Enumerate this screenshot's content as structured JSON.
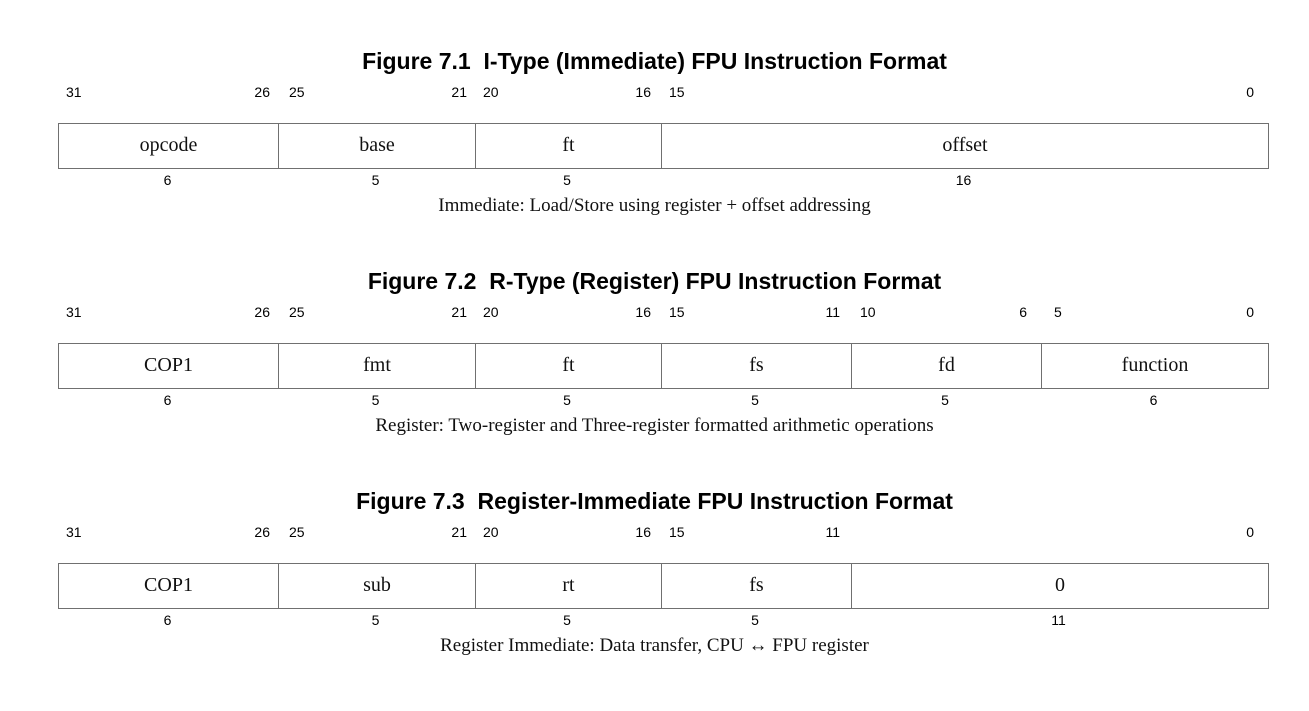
{
  "figures": [
    {
      "title": "Figure 7.1  I-Type (Immediate) FPU Instruction Format",
      "fields": [
        {
          "name": "opcode",
          "hi": "31",
          "lo": "26",
          "width": "6"
        },
        {
          "name": "base",
          "hi": "25",
          "lo": "21",
          "width": "5"
        },
        {
          "name": "ft",
          "hi": "20",
          "lo": "16",
          "width": "5"
        },
        {
          "name": "offset",
          "hi": "15",
          "lo": "0",
          "width": "16"
        }
      ],
      "caption": "Immediate: Load/Store using register + offset addressing"
    },
    {
      "title": "Figure 7.2  R-Type (Register) FPU Instruction Format",
      "fields": [
        {
          "name": "COP1",
          "hi": "31",
          "lo": "26",
          "width": "6"
        },
        {
          "name": "fmt",
          "hi": "25",
          "lo": "21",
          "width": "5"
        },
        {
          "name": "ft",
          "hi": "20",
          "lo": "16",
          "width": "5"
        },
        {
          "name": "fs",
          "hi": "15",
          "lo": "11",
          "width": "5"
        },
        {
          "name": "fd",
          "hi": "10",
          "lo": "6",
          "width": "5"
        },
        {
          "name": "function",
          "hi": "5",
          "lo": "0",
          "width": "6"
        }
      ],
      "caption": "Register: Two-register and Three-register formatted arithmetic operations"
    },
    {
      "title": "Figure 7.3  Register-Immediate FPU Instruction Format",
      "fields": [
        {
          "name": "COP1",
          "hi": "31",
          "lo": "26",
          "width": "6"
        },
        {
          "name": "sub",
          "hi": "25",
          "lo": "21",
          "width": "5"
        },
        {
          "name": "rt",
          "hi": "20",
          "lo": "16",
          "width": "5"
        },
        {
          "name": "fs",
          "hi": "15",
          "lo": "11",
          "width": "5"
        },
        {
          "name": "0",
          "hi": "",
          "lo": "0",
          "width": "11"
        }
      ],
      "caption": "Register Immediate: Data transfer, CPU ↔ FPU register"
    }
  ]
}
